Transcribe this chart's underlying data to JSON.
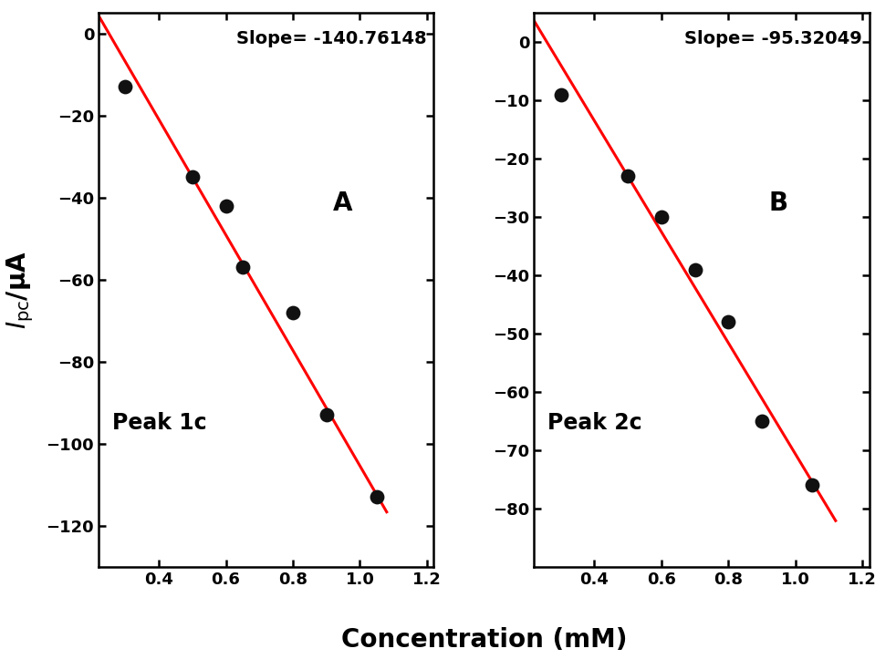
{
  "panel_A": {
    "x_data": [
      0.3,
      0.5,
      0.6,
      0.65,
      0.8,
      0.9,
      1.05
    ],
    "y_data": [
      -13,
      -35,
      -42,
      -57,
      -68,
      -93,
      -113
    ],
    "slope": -140.76148,
    "intercept": 35.38,
    "fit_x": [
      0.22,
      1.08
    ],
    "label": "Peak 1c",
    "panel_letter": "A",
    "slope_text": "Slope= -140.76148",
    "xlim": [
      0.22,
      1.22
    ],
    "ylim": [
      -130,
      5
    ],
    "yticks": [
      0,
      -20,
      -40,
      -60,
      -80,
      -100,
      -120
    ],
    "xticks": [
      0.4,
      0.6,
      0.8,
      1.0,
      1.2
    ]
  },
  "panel_B": {
    "x_data": [
      0.3,
      0.5,
      0.6,
      0.7,
      0.8,
      0.9,
      1.05
    ],
    "y_data": [
      -9,
      -23,
      -30,
      -39,
      -48,
      -65,
      -76
    ],
    "slope": -95.32049,
    "intercept": 24.66,
    "fit_x": [
      0.22,
      1.12
    ],
    "label": "Peak 2c",
    "panel_letter": "B",
    "slope_text": "Slope= -95.32049",
    "xlim": [
      0.22,
      1.22
    ],
    "ylim": [
      -90,
      5
    ],
    "yticks": [
      0,
      -10,
      -20,
      -30,
      -40,
      -50,
      -60,
      -70,
      -80
    ],
    "xticks": [
      0.4,
      0.6,
      0.8,
      1.0,
      1.2
    ]
  },
  "xlabel": "Concentration (mM)",
  "dot_color": "#111111",
  "line_color": "#ff0000",
  "dot_size": 130,
  "line_width": 2.2,
  "font_size_ticks": 13,
  "font_size_label": 20,
  "font_size_slope": 14,
  "font_size_panel": 20,
  "font_size_peak": 17
}
